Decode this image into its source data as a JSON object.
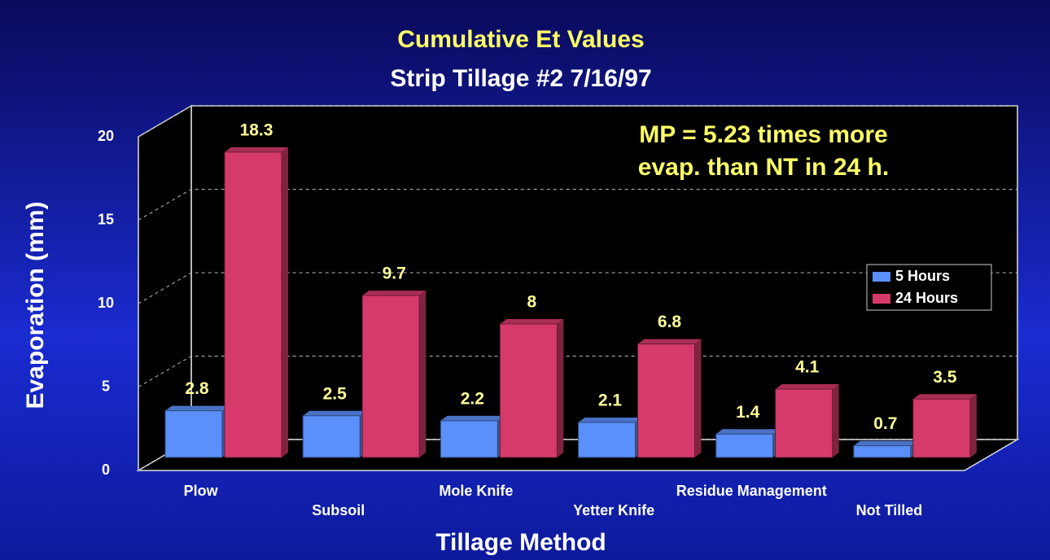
{
  "chart_data": {
    "type": "bar3d",
    "title": "Cumulative Et Values",
    "subtitle": "Strip Tillage #2  7/16/97",
    "annotation": [
      "MP = 5.23 times more",
      "evap. than NT in 24 h."
    ],
    "y_label": "Evaporation (mm)",
    "x_label": "Tillage Method",
    "categories": [
      "Plow",
      "Subsoil",
      "Mole Knife",
      "Yetter Knife",
      "Residue Management",
      "Not Tilled"
    ],
    "series": [
      {
        "name": "5 Hours",
        "color": "#5b8ff9",
        "values": [
          2.8,
          2.5,
          2.2,
          2.1,
          1.4,
          0.7
        ]
      },
      {
        "name": "24 Hours",
        "color": "#d63a6a",
        "values": [
          18.3,
          9.7,
          8,
          6.8,
          4.1,
          3.5
        ]
      }
    ],
    "ylim": [
      0,
      20
    ],
    "yticks": [
      0,
      5,
      10,
      15,
      20
    ],
    "grid": true
  }
}
